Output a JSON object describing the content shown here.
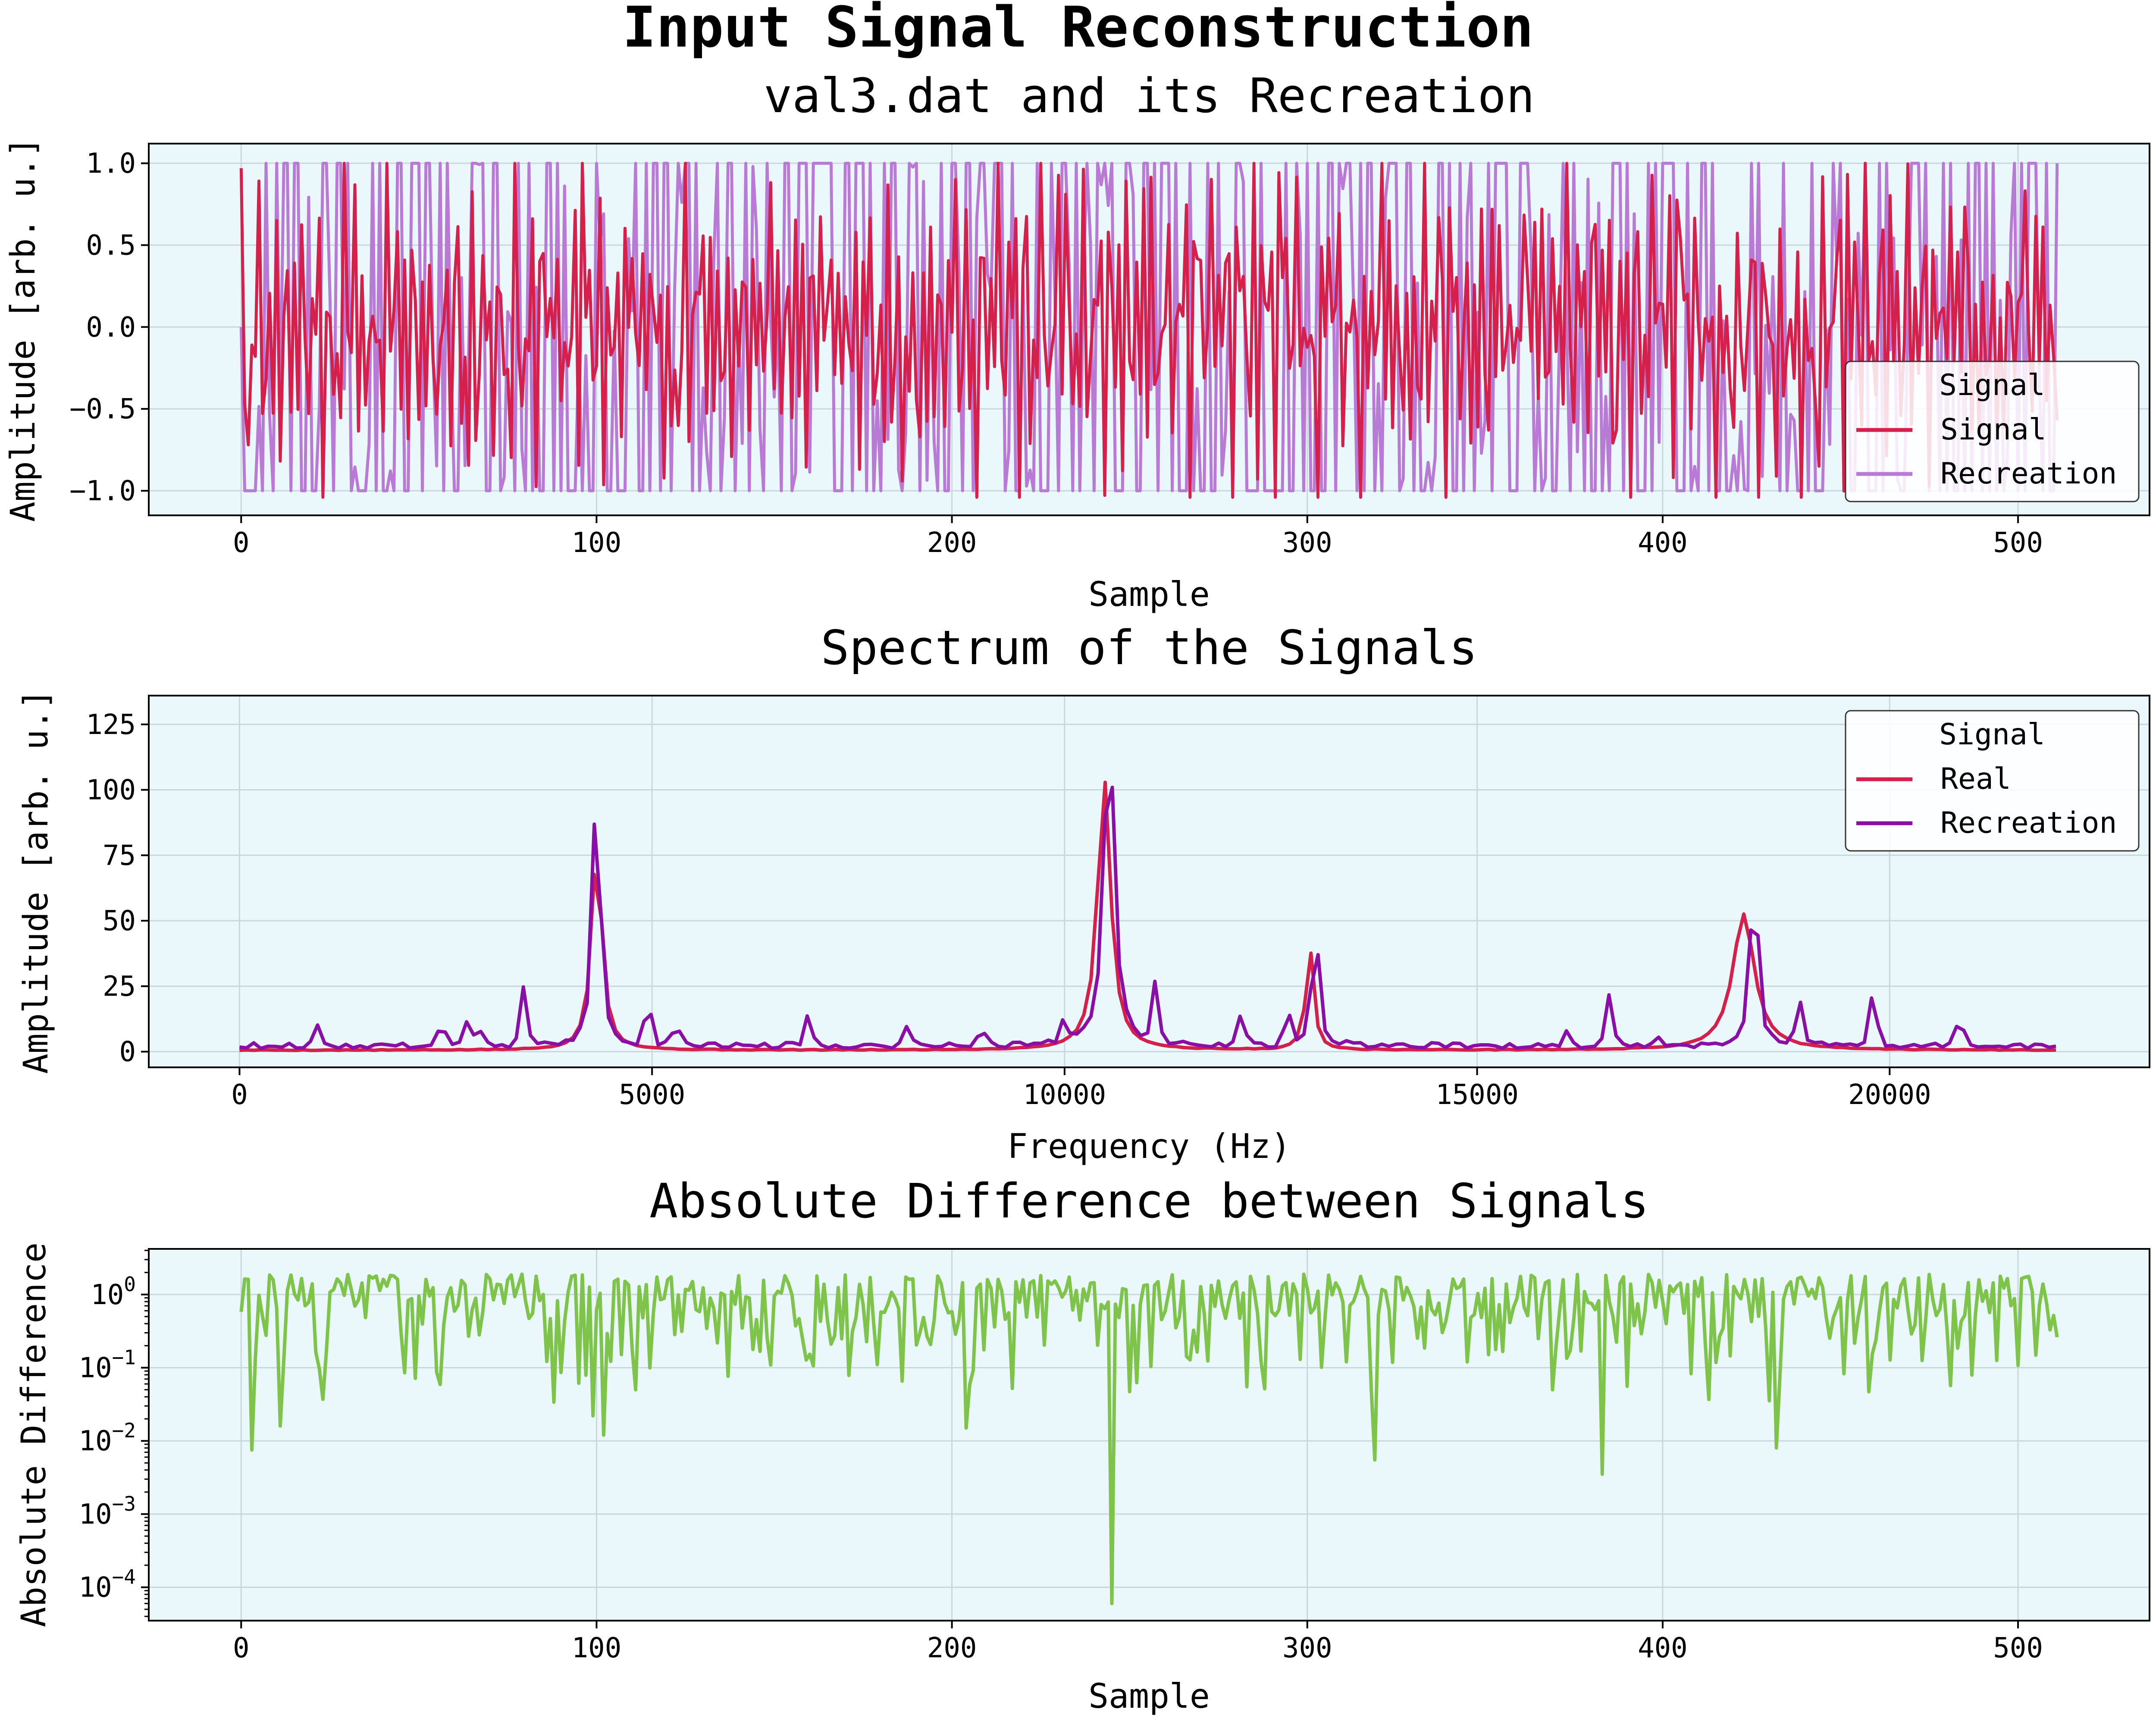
{
  "figure": {
    "title": "Input Signal Reconstruction"
  },
  "colors": {
    "axes_bg": "#eaf7fb",
    "grid": "#c9d6dc",
    "signal": "#d6204c",
    "recreation_light": "#b97ad6",
    "recreation_dark": "#8a0fa6",
    "difference": "#7fc44a"
  },
  "chart_data": [
    {
      "id": "time",
      "type": "line",
      "title": "val3.dat and its Recreation",
      "xlabel": "Sample",
      "ylabel": "Amplitude [arb. u.]",
      "xlim": [
        -26,
        537
      ],
      "ylim": [
        -1.15,
        1.12
      ],
      "xticks": [
        0,
        100,
        200,
        300,
        400,
        500
      ],
      "xtick_labels": [
        "0",
        "100",
        "200",
        "300",
        "400",
        "500"
      ],
      "yticks": [
        1.0,
        0.5,
        0.0,
        -0.5,
        -1.0
      ],
      "ytick_labels": [
        "1.0",
        "0.5",
        "0.0",
        "−0.5",
        "−1.0"
      ],
      "grid": true,
      "legend": {
        "title": "Signal",
        "position": "right",
        "labels": [
          "Signal",
          "Recreation"
        ]
      },
      "series": [
        {
          "name": "Signal",
          "generator": "time_signal",
          "n": 512,
          "seed": 11
        },
        {
          "name": "Recreation",
          "generator": "time_recreation",
          "n": 512,
          "seed": 23
        }
      ]
    },
    {
      "id": "spectrum",
      "type": "line",
      "title": "Spectrum of the Signals",
      "xlabel": "Frequency (Hz)",
      "ylabel": "Amplitude [arb. u.]",
      "xlim": [
        -1100,
        23150
      ],
      "ylim": [
        -6,
        136
      ],
      "xticks": [
        0,
        5000,
        10000,
        15000,
        20000
      ],
      "xtick_labels": [
        "0",
        "5000",
        "10000",
        "15000",
        "20000"
      ],
      "yticks": [
        0,
        25,
        50,
        75,
        100,
        125
      ],
      "ytick_labels": [
        "0",
        "25",
        "50",
        "75",
        "100",
        "125"
      ],
      "grid": true,
      "legend": {
        "title": "Signal",
        "position": "top-right",
        "labels": [
          "Real",
          "Recreation"
        ]
      },
      "series": [
        {
          "name": "Real",
          "baseline": 0.4,
          "peaks": [
            {
              "f": 4330,
              "a": 78,
              "w": 75
            },
            {
              "f": 10480,
              "a": 104,
              "w": 95
            },
            {
              "f": 12970,
              "a": 40,
              "w": 55
            },
            {
              "f": 18230,
              "a": 52,
              "w": 160
            }
          ]
        },
        {
          "name": "Recreation",
          "baseline": 1.2,
          "peaks": [
            {
              "f": 4330,
              "a": 121,
              "w": 45
            },
            {
              "f": 10540,
              "a": 129,
              "w": 70
            },
            {
              "f": 13040,
              "a": 51,
              "w": 45
            },
            {
              "f": 18360,
              "a": 81,
              "w": 45
            }
          ],
          "spikes": [
            {
              "f": 950,
              "a": 7
            },
            {
              "f": 2450,
              "a": 8
            },
            {
              "f": 2750,
              "a": 10
            },
            {
              "f": 2900,
              "a": 6
            },
            {
              "f": 3450,
              "a": 22
            },
            {
              "f": 4950,
              "a": 16
            },
            {
              "f": 5300,
              "a": 8
            },
            {
              "f": 6900,
              "a": 12
            },
            {
              "f": 8100,
              "a": 7
            },
            {
              "f": 9000,
              "a": 7
            },
            {
              "f": 10000,
              "a": 9
            },
            {
              "f": 11100,
              "a": 22
            },
            {
              "f": 12150,
              "a": 13
            },
            {
              "f": 12700,
              "a": 14
            },
            {
              "f": 16100,
              "a": 6
            },
            {
              "f": 16600,
              "a": 20
            },
            {
              "f": 17200,
              "a": 4
            },
            {
              "f": 18900,
              "a": 19
            },
            {
              "f": 19800,
              "a": 21
            },
            {
              "f": 20850,
              "a": 10
            }
          ]
        }
      ]
    },
    {
      "id": "diff",
      "type": "line",
      "title": "Absolute Difference between Signals",
      "xlabel": "Sample",
      "ylabel": "Absolute Difference",
      "xscale": "linear",
      "yscale": "log",
      "xlim": [
        -26,
        537
      ],
      "ylim": [
        3.5e-05,
        4.2
      ],
      "xticks": [
        0,
        100,
        200,
        300,
        400,
        500
      ],
      "xtick_labels": [
        "0",
        "100",
        "200",
        "300",
        "400",
        "500"
      ],
      "yticks": [
        1,
        0.1,
        0.01,
        0.001,
        0.0001
      ],
      "ytick_labels": [
        {
          "base": "10",
          "exp": "0"
        },
        {
          "base": "10",
          "exp": "−1"
        },
        {
          "base": "10",
          "exp": "−2"
        },
        {
          "base": "10",
          "exp": "−3"
        },
        {
          "base": "10",
          "exp": "−4"
        }
      ],
      "grid": true,
      "series": [
        {
          "name": "Difference",
          "generator": "abs_difference",
          "n": 512,
          "minima": [
            {
              "x": 3,
              "y": 0.0075
            },
            {
              "x": 11,
              "y": 0.016
            },
            {
              "x": 99,
              "y": 0.022
            },
            {
              "x": 102,
              "y": 0.012
            },
            {
              "x": 204,
              "y": 0.015
            },
            {
              "x": 245,
              "y": 6e-05
            },
            {
              "x": 319,
              "y": 0.0055
            },
            {
              "x": 383,
              "y": 0.0035
            },
            {
              "x": 432,
              "y": 0.008
            }
          ]
        }
      ]
    }
  ]
}
